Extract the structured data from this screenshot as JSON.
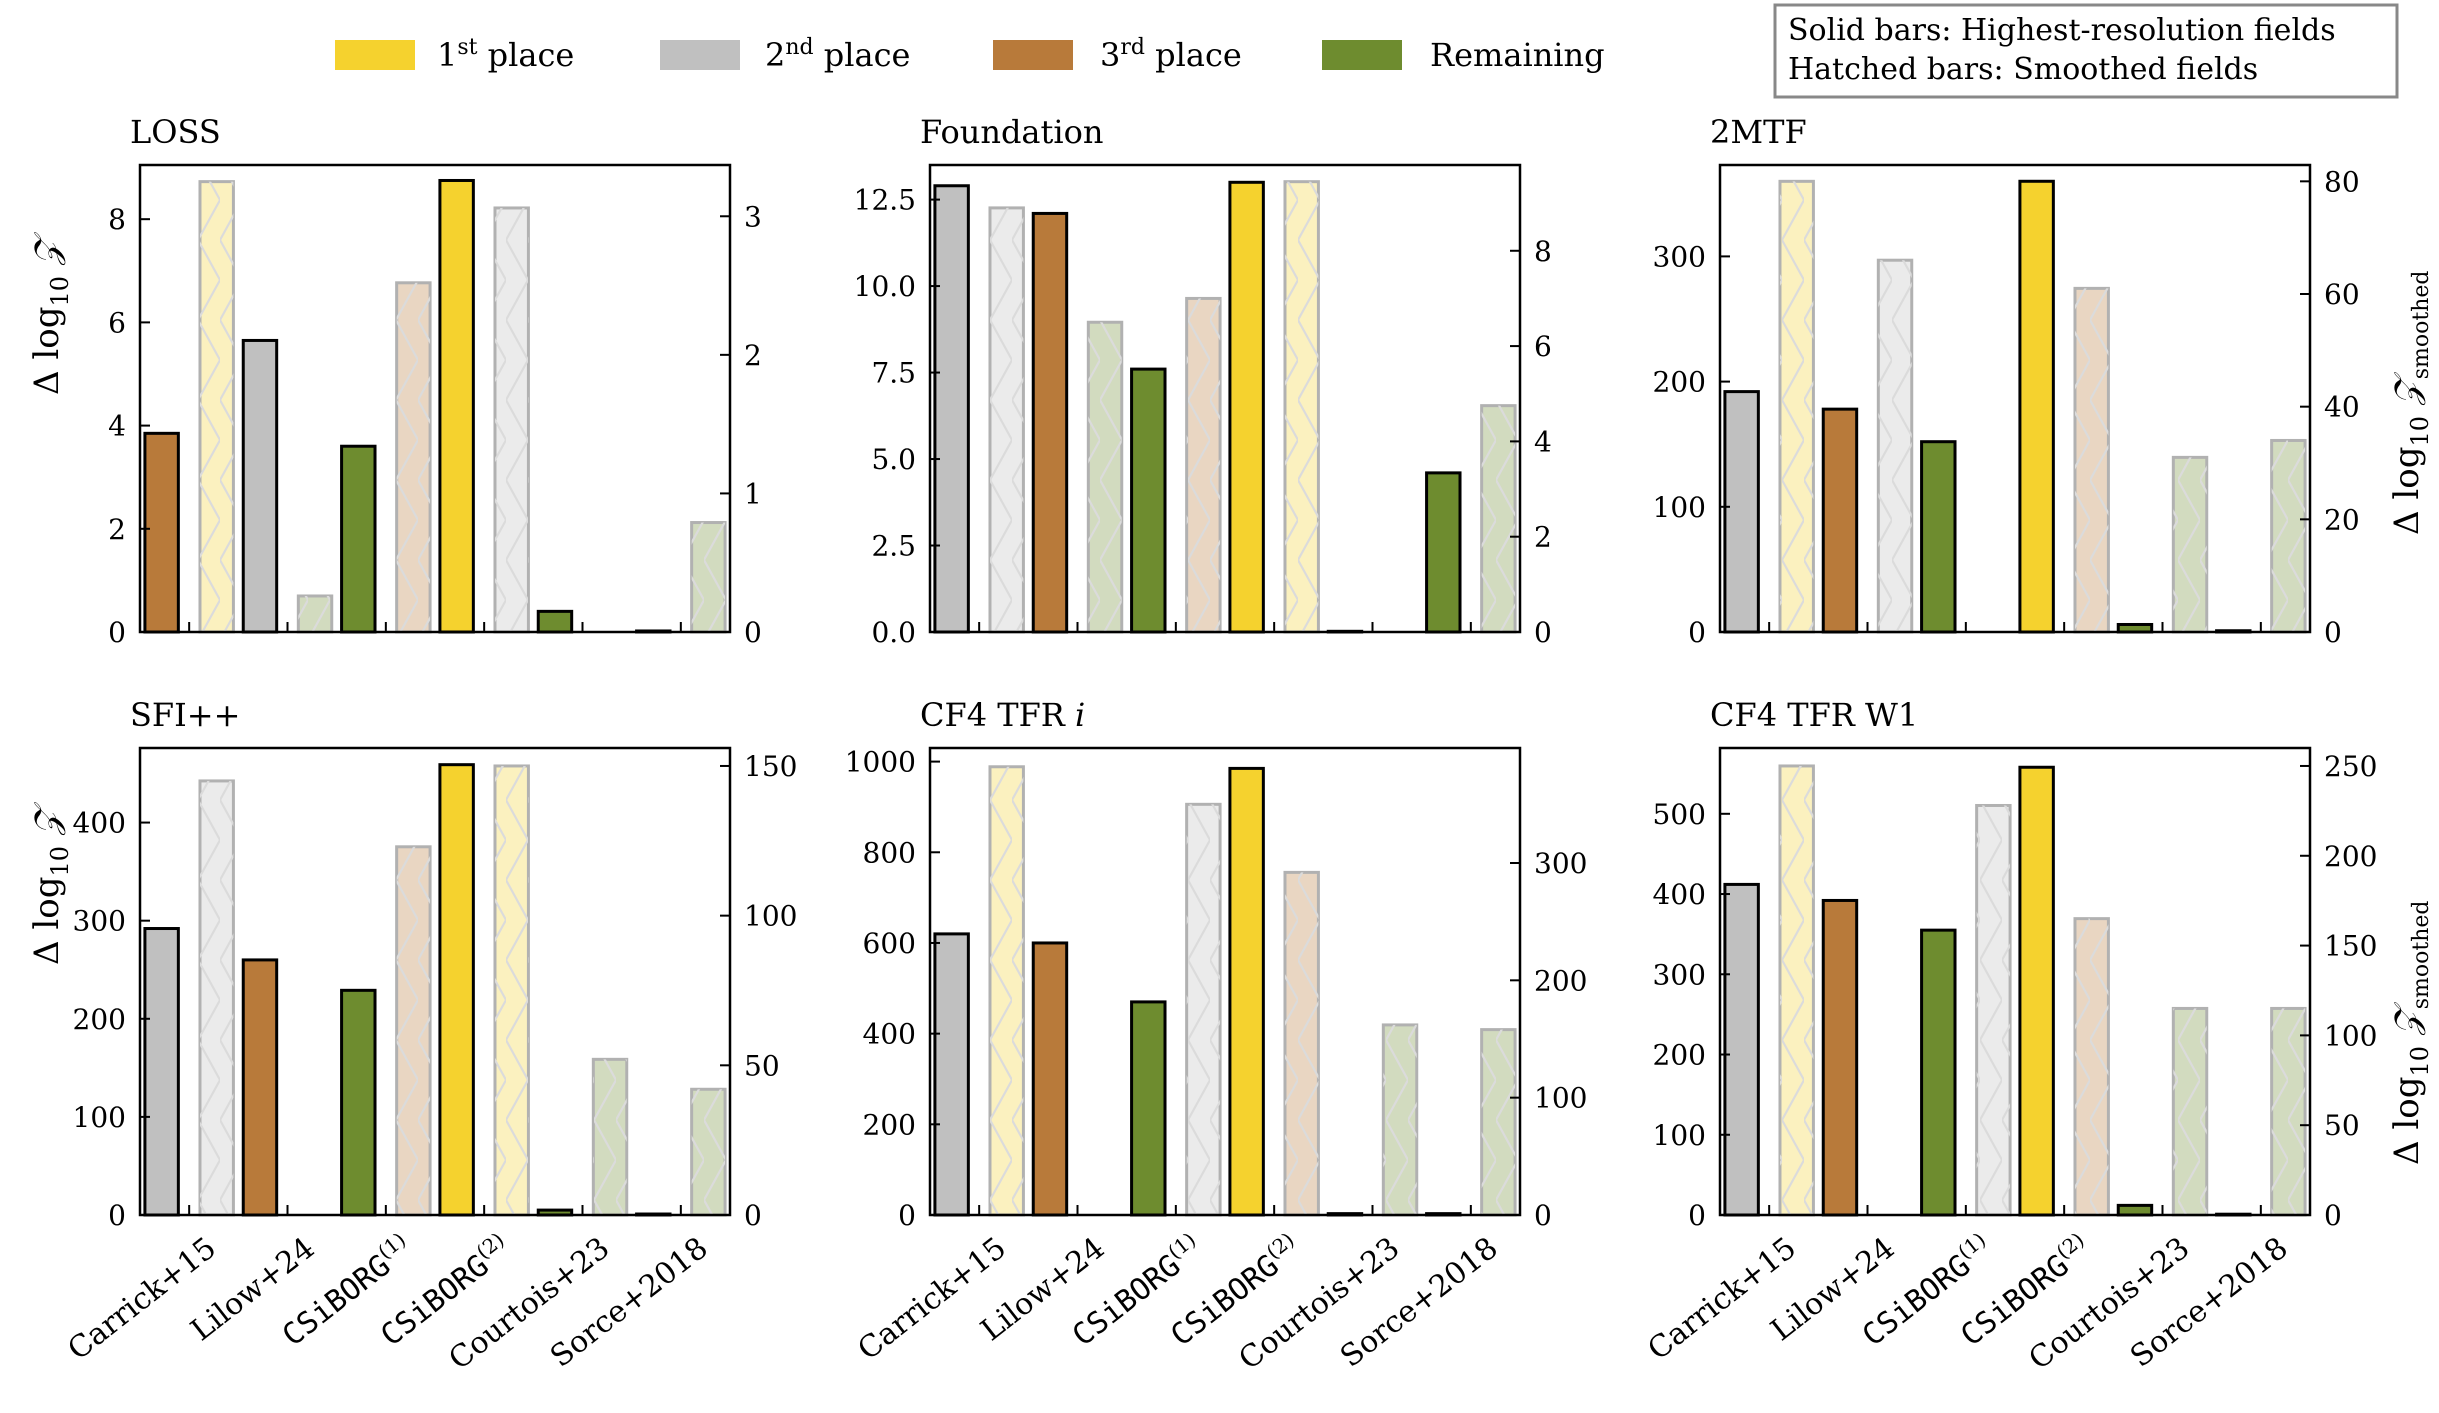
{
  "legend": {
    "items": [
      {
        "key": "first",
        "label": "1",
        "sup": "st",
        "suffix": " place",
        "color": "#f5d22e"
      },
      {
        "key": "second",
        "label": "2",
        "sup": "nd",
        "suffix": " place",
        "color": "#c0c0c0"
      },
      {
        "key": "third",
        "label": "3",
        "sup": "rd",
        "suffix": " place",
        "color": "#b87a3a"
      },
      {
        "key": "remaining",
        "label": "Remaining",
        "sup": "",
        "suffix": "",
        "color": "#6e8c2f"
      }
    ],
    "note_lines": [
      "Solid bars: Highest-resolution fields",
      "Hatched bars: Smoothed fields"
    ]
  },
  "labels": {
    "ylabel_left": "Δ log₁₀ 𝒵",
    "ylabel_right": "Δ log₁₀ 𝒵smoothed",
    "categories": [
      {
        "main": "Carrick+15",
        "sup": "",
        "mono": false
      },
      {
        "main": "Lilow+24",
        "sup": "",
        "mono": false
      },
      {
        "main": "CSiBORG",
        "sup": "(1)",
        "mono": true
      },
      {
        "main": "CSiBORG",
        "sup": "(2)",
        "mono": true
      },
      {
        "main": "Courtois+23",
        "sup": "",
        "mono": false
      },
      {
        "main": "Sorce+2018",
        "sup": "",
        "mono": false
      }
    ]
  },
  "chart_data": [
    {
      "type": "bar",
      "title": "LOSS",
      "solid": [
        3.85,
        5.65,
        3.6,
        8.75,
        0.4,
        0.02
      ],
      "solid_rank": [
        "third",
        "second",
        "remaining",
        "first",
        "remaining",
        "remaining"
      ],
      "hatched": [
        3.25,
        0.26,
        2.52,
        3.06,
        0.0,
        0.79
      ],
      "hatched_rank": [
        "first",
        "remaining",
        "third",
        "second",
        "remaining",
        "remaining"
      ],
      "ylim_left": [
        0,
        9.05
      ],
      "yticks_left": [
        0,
        2,
        4,
        6,
        8
      ],
      "ytick_labels_left": [
        "0",
        "2",
        "4",
        "6",
        "8"
      ],
      "ylim_right": [
        0,
        3.37
      ],
      "yticks_right": [
        0,
        1,
        2,
        3
      ],
      "ytick_labels_right": [
        "0",
        "1",
        "2",
        "3"
      ],
      "show_ylabel_left": true,
      "show_ylabel_right": false
    },
    {
      "type": "bar",
      "title": "Foundation",
      "solid": [
        12.9,
        12.1,
        7.6,
        13.0,
        0.02,
        4.6
      ],
      "solid_rank": [
        "second",
        "third",
        "remaining",
        "first",
        "remaining",
        "remaining"
      ],
      "hatched": [
        8.9,
        6.5,
        7.0,
        9.45,
        0.0,
        4.75
      ],
      "hatched_rank": [
        "second",
        "remaining",
        "third",
        "first",
        "remaining",
        "remaining"
      ],
      "ylim_left": [
        0,
        13.5
      ],
      "yticks_left": [
        0,
        2.5,
        5,
        7.5,
        10,
        12.5
      ],
      "ytick_labels_left": [
        "0.0",
        "2.5",
        "5.0",
        "7.5",
        "10.0",
        "12.5"
      ],
      "ylim_right": [
        0,
        9.8
      ],
      "yticks_right": [
        0,
        2,
        4,
        6,
        8
      ],
      "ytick_labels_right": [
        "0",
        "2",
        "4",
        "6",
        "8"
      ],
      "show_ylabel_left": false,
      "show_ylabel_right": false
    },
    {
      "type": "bar",
      "title": "2MTF",
      "solid": [
        192,
        178,
        152,
        360,
        6,
        1
      ],
      "solid_rank": [
        "second",
        "third",
        "remaining",
        "first",
        "remaining",
        "remaining"
      ],
      "hatched": [
        80,
        66,
        0,
        61,
        31,
        34
      ],
      "hatched_rank": [
        "first",
        "second",
        "remaining",
        "third",
        "remaining",
        "remaining"
      ],
      "ylim_left": [
        0,
        373
      ],
      "yticks_left": [
        0,
        100,
        200,
        300
      ],
      "ytick_labels_left": [
        "0",
        "100",
        "200",
        "300"
      ],
      "ylim_right": [
        0,
        82.9
      ],
      "yticks_right": [
        0,
        20,
        40,
        60,
        80
      ],
      "ytick_labels_right": [
        "0",
        "20",
        "40",
        "60",
        "80"
      ],
      "show_ylabel_left": false,
      "show_ylabel_right": true
    },
    {
      "type": "bar",
      "title": "SFI++",
      "solid": [
        292,
        260,
        229,
        459,
        5,
        1
      ],
      "solid_rank": [
        "second",
        "third",
        "remaining",
        "first",
        "remaining",
        "remaining"
      ],
      "hatched": [
        145,
        0,
        123,
        150,
        52,
        42
      ],
      "hatched_rank": [
        "second",
        "remaining",
        "third",
        "first",
        "remaining",
        "remaining"
      ],
      "ylim_left": [
        0,
        476
      ],
      "yticks_left": [
        0,
        100,
        200,
        300,
        400
      ],
      "ytick_labels_left": [
        "0",
        "100",
        "200",
        "300",
        "400"
      ],
      "ylim_right": [
        0,
        156
      ],
      "yticks_right": [
        0,
        50,
        100,
        150
      ],
      "ytick_labels_right": [
        "0",
        "50",
        "100",
        "150"
      ],
      "show_ylabel_left": true,
      "show_ylabel_right": false
    },
    {
      "type": "bar",
      "title": "CF4 TFR i",
      "solid": [
        620,
        600,
        470,
        985,
        3,
        3
      ],
      "solid_rank": [
        "second",
        "third",
        "remaining",
        "first",
        "remaining",
        "remaining"
      ],
      "hatched": [
        382,
        0,
        350,
        292,
        162,
        158
      ],
      "hatched_rank": [
        "first",
        "remaining",
        "second",
        "third",
        "remaining",
        "remaining"
      ],
      "ylim_left": [
        0,
        1030
      ],
      "yticks_left": [
        0,
        200,
        400,
        600,
        800,
        1000
      ],
      "ytick_labels_left": [
        "0",
        "200",
        "400",
        "600",
        "800",
        "1000"
      ],
      "ylim_right": [
        0,
        398
      ],
      "yticks_right": [
        0,
        100,
        200,
        300
      ],
      "ytick_labels_right": [
        "0",
        "100",
        "200",
        "300"
      ],
      "show_ylabel_left": false,
      "show_ylabel_right": false
    },
    {
      "type": "bar",
      "title": "CF4 TFR W1",
      "solid": [
        412,
        392,
        355,
        558,
        12,
        1
      ],
      "solid_rank": [
        "second",
        "third",
        "remaining",
        "first",
        "remaining",
        "remaining"
      ],
      "hatched": [
        250,
        0,
        228,
        165,
        115,
        115
      ],
      "hatched_rank": [
        "first",
        "remaining",
        "second",
        "third",
        "remaining",
        "remaining"
      ],
      "ylim_left": [
        0,
        582
      ],
      "yticks_left": [
        0,
        100,
        200,
        300,
        400,
        500
      ],
      "ytick_labels_left": [
        "0",
        "100",
        "200",
        "300",
        "400",
        "500"
      ],
      "ylim_right": [
        0,
        260
      ],
      "yticks_right": [
        0,
        50,
        100,
        150,
        200,
        250
      ],
      "ytick_labels_right": [
        "0",
        "50",
        "100",
        "150",
        "200",
        "250"
      ],
      "show_ylabel_left": false,
      "show_ylabel_right": true
    }
  ]
}
